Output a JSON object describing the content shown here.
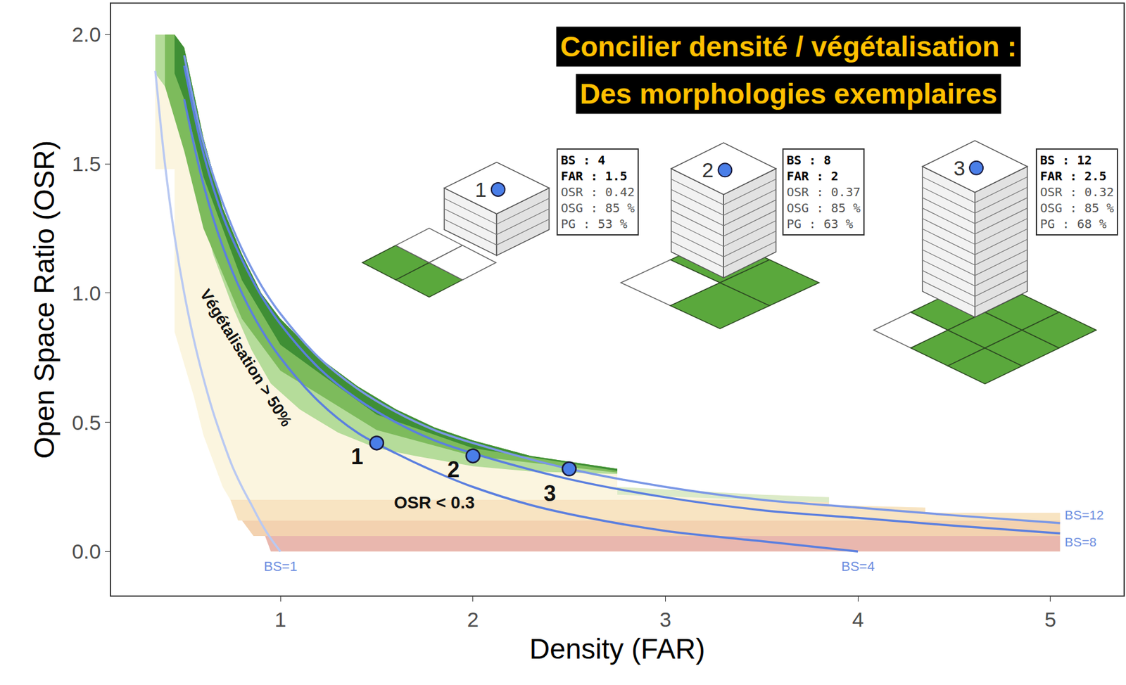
{
  "chart_data": {
    "type": "line",
    "title": "Concilier densité / végétalisation :",
    "subtitle": "Des morphologies exemplaires",
    "x_label": "Density (FAR)",
    "y_label": "Open Space Ratio (OSR)",
    "xlim": [
      0.12,
      5.38
    ],
    "xticks": [
      1,
      2,
      3,
      4,
      5
    ],
    "ylim": [
      -0.17,
      2.12
    ],
    "yticks": [
      {
        "value": 0,
        "label": "0.0"
      },
      0.5,
      {
        "value": 1,
        "label": "1.0"
      },
      1.5,
      {
        "value": 2,
        "label": "2.0"
      }
    ],
    "grid": false,
    "series": [
      {
        "name": "BS=1",
        "color": "#b9c9f2",
        "x": [
          0.35,
          0.4,
          0.45,
          0.5,
          0.55,
          0.6,
          0.65,
          0.7,
          0.75,
          0.8,
          0.85,
          0.9,
          0.95,
          1.0
        ],
        "values": [
          1.86,
          1.5,
          1.22,
          1.0,
          0.82,
          0.67,
          0.54,
          0.43,
          0.33,
          0.25,
          0.18,
          0.11,
          0.05,
          0.0
        ]
      },
      {
        "name": "BS=4",
        "color": "#5b7fdf",
        "x": [
          0.5,
          0.6,
          0.7,
          0.8,
          0.9,
          1.0,
          1.2,
          1.4,
          1.6,
          1.8,
          2.0,
          2.3,
          2.6,
          3.0,
          3.5,
          4.0
        ],
        "values": [
          1.75,
          1.42,
          1.18,
          1.0,
          0.86,
          0.75,
          0.58,
          0.46,
          0.38,
          0.31,
          0.25,
          0.18,
          0.13,
          0.08,
          0.04,
          0.0
        ]
      },
      {
        "name": "BS=8",
        "color": "#5b7fdf",
        "x": [
          0.5,
          0.6,
          0.7,
          0.8,
          0.9,
          1.0,
          1.2,
          1.4,
          1.6,
          1.8,
          2.0,
          2.5,
          3.0,
          3.5,
          4.0,
          4.5,
          5.05
        ],
        "values": [
          1.88,
          1.54,
          1.3,
          1.13,
          0.99,
          0.88,
          0.71,
          0.59,
          0.5,
          0.43,
          0.38,
          0.28,
          0.21,
          0.16,
          0.13,
          0.1,
          0.07
        ]
      },
      {
        "name": "BS=12",
        "color": "#7b98e6",
        "x": [
          0.5,
          0.6,
          0.7,
          0.8,
          0.9,
          1.0,
          1.2,
          1.4,
          1.6,
          1.8,
          2.0,
          2.5,
          3.0,
          3.5,
          4.0,
          4.5,
          5.05
        ],
        "values": [
          1.92,
          1.58,
          1.35,
          1.17,
          1.03,
          0.92,
          0.75,
          0.63,
          0.54,
          0.47,
          0.42,
          0.32,
          0.25,
          0.2,
          0.17,
          0.14,
          0.11
        ]
      }
    ],
    "zones": [
      {
        "color": "#fbf5df",
        "x": [
          0.35,
          0.45,
          0.5,
          0.6,
          0.7,
          0.8,
          0.9,
          1.0,
          1.2,
          1.4,
          1.6,
          1.8,
          2.0,
          2.3,
          2.75,
          2.75,
          3.0,
          3.5,
          3.85,
          3.85,
          4.35,
          4.35,
          5.05,
          5.05,
          0.95,
          0.95,
          0.78,
          0.7,
          0.6,
          0.55,
          0.45,
          0.45,
          0.35
        ],
        "y": [
          2.0,
          2.0,
          1.95,
          1.6,
          1.33,
          1.15,
          1.0,
          0.9,
          0.75,
          0.64,
          0.55,
          0.48,
          0.43,
          0.37,
          0.32,
          0.25,
          0.24,
          0.22,
          0.21,
          0.18,
          0.17,
          0.15,
          0.15,
          0.0,
          0.0,
          0.05,
          0.15,
          0.25,
          0.45,
          0.6,
          0.85,
          1.48,
          1.48
        ]
      },
      {
        "color": "#f8e4c2",
        "x": [
          0.78,
          5.05,
          5.05,
          4.35,
          4.35,
          3.85,
          3.85,
          0.74
        ],
        "y": [
          0.12,
          0.12,
          0.15,
          0.15,
          0.17,
          0.18,
          0.2,
          0.2
        ]
      },
      {
        "color": "#f3d2b0",
        "x": [
          0.86,
          5.05,
          5.05,
          0.8
        ],
        "y": [
          0.06,
          0.06,
          0.12,
          0.12
        ]
      },
      {
        "color": "#e9b7ae",
        "x": [
          0.95,
          5.05,
          5.05,
          0.92
        ],
        "y": [
          0.0,
          0.0,
          0.06,
          0.06
        ]
      },
      {
        "color": "#dcebc8",
        "x": [
          2.75,
          3.0,
          3.5,
          3.85,
          3.85,
          2.75
        ],
        "y": [
          0.25,
          0.24,
          0.22,
          0.21,
          0.19,
          0.22
        ]
      },
      {
        "color": "#b5dc9a",
        "x": [
          0.35,
          0.45,
          0.5,
          0.6,
          0.7,
          0.8,
          0.9,
          1.0,
          1.2,
          1.4,
          1.6,
          1.8,
          2.0,
          2.3,
          2.75,
          2.75,
          2.3,
          2.0,
          1.7,
          1.5,
          1.3,
          1.1,
          0.95,
          0.85,
          0.75,
          0.65,
          0.55,
          0.45,
          0.35
        ],
        "y": [
          2.0,
          2.0,
          1.95,
          1.6,
          1.33,
          1.15,
          1.0,
          0.9,
          0.75,
          0.64,
          0.55,
          0.48,
          0.43,
          0.37,
          0.32,
          0.3,
          0.31,
          0.33,
          0.37,
          0.4,
          0.46,
          0.55,
          0.65,
          0.78,
          0.95,
          1.15,
          1.45,
          1.75,
          1.85
        ]
      },
      {
        "color": "#7dbb5c",
        "x": [
          0.4,
          0.45,
          0.5,
          0.6,
          0.7,
          0.8,
          0.9,
          1.0,
          1.2,
          1.4,
          1.6,
          1.8,
          2.0,
          2.3,
          2.75,
          2.75,
          2.0,
          1.5,
          1.0,
          0.8,
          0.6,
          0.5,
          0.4
        ],
        "y": [
          2.0,
          2.0,
          1.95,
          1.6,
          1.33,
          1.15,
          1.0,
          0.9,
          0.75,
          0.64,
          0.55,
          0.48,
          0.43,
          0.37,
          0.32,
          0.305,
          0.37,
          0.47,
          0.7,
          0.9,
          1.25,
          1.55,
          1.8
        ]
      },
      {
        "color": "#3f8f35",
        "x": [
          0.45,
          0.5,
          0.6,
          0.7,
          0.8,
          0.9,
          1.0,
          1.2,
          1.4,
          1.6,
          1.8,
          2.0,
          2.3,
          2.75,
          2.75,
          2.0,
          1.5,
          1.0,
          0.8,
          0.6,
          0.5,
          0.45
        ],
        "y": [
          2.0,
          1.95,
          1.6,
          1.33,
          1.15,
          1.0,
          0.9,
          0.75,
          0.64,
          0.55,
          0.48,
          0.43,
          0.37,
          0.32,
          0.312,
          0.4,
          0.53,
          0.8,
          1.05,
          1.45,
          1.75,
          1.85
        ]
      }
    ],
    "info_separator": " : ",
    "buildings": [
      {
        "label": "1",
        "info": [
          {
            "name": "BS",
            "value": 4
          },
          {
            "name": "FAR",
            "value": 1.5
          },
          {
            "name": "OSR",
            "value": 0.42
          },
          {
            "name": "OSG",
            "value": 85,
            "label": "85 %"
          },
          {
            "name": "PG",
            "value": 53,
            "label": "53 %"
          }
        ]
      },
      {
        "label": "2",
        "info": [
          {
            "name": "BS",
            "value": 8
          },
          {
            "name": "FAR",
            "value": 2
          },
          {
            "name": "OSR",
            "value": 0.37
          },
          {
            "name": "OSG",
            "value": 85,
            "label": "85 %"
          },
          {
            "name": "PG",
            "value": 63,
            "label": "63 %"
          }
        ]
      },
      {
        "label": "3",
        "info": [
          {
            "name": "BS",
            "value": 12
          },
          {
            "name": "FAR",
            "value": 2.5
          },
          {
            "name": "OSR",
            "value": 0.32
          },
          {
            "name": "OSG",
            "value": 85,
            "label": "85 %"
          },
          {
            "name": "PG",
            "value": 68,
            "label": "68 %"
          }
        ]
      }
    ],
    "annotations": [
      {
        "text": "Végétalisation > 50%",
        "x": 0.82,
        "y": 0.75
      },
      {
        "text": "OSR < 0.3",
        "x": 1.8,
        "y": 0.19
      }
    ]
  }
}
